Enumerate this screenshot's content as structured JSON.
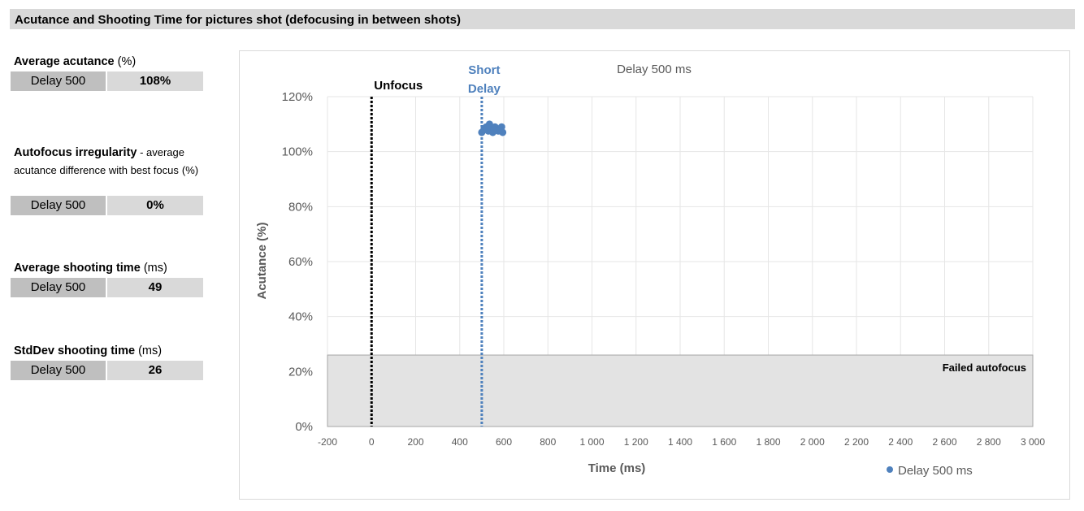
{
  "page": {
    "title": "Acutance and Shooting Time for pictures shot (defocusing in between shots)"
  },
  "metrics": [
    {
      "title": "Average acutance",
      "subtitle": "",
      "unit": "(%)",
      "row_label": "Delay 500",
      "value": "108%"
    },
    {
      "title": "Autofocus irregularity",
      "subtitle": " - average acutance difference with best focus",
      "unit": "(%)",
      "row_label": "Delay 500",
      "value": "0%"
    },
    {
      "title": "Average shooting time",
      "subtitle": "",
      "unit": "(ms)",
      "row_label": "Delay 500",
      "value": "49"
    },
    {
      "title": "StdDev shooting time",
      "subtitle": "",
      "unit": "(ms)",
      "row_label": "Delay 500",
      "value": "26"
    }
  ],
  "chart_data": {
    "type": "scatter",
    "title": "Delay 500 ms",
    "xlabel": "Time (ms)",
    "ylabel": "Acutance (%)",
    "xlim": [
      -200,
      3000
    ],
    "ylim": [
      0,
      120
    ],
    "x_ticks": [
      "-200",
      "0",
      "200",
      "400",
      "600",
      "800",
      "1 000",
      "1 200",
      "1 400",
      "1 600",
      "1 800",
      "2 000",
      "2 200",
      "2 400",
      "2 600",
      "2 800",
      "3 000"
    ],
    "y_ticks": [
      "0%",
      "20%",
      "40%",
      "60%",
      "80%",
      "100%",
      "120%"
    ],
    "grid": true,
    "legend_position": "bottom-right",
    "series": [
      {
        "name": "Delay 500 ms",
        "color": "#4f81bd",
        "points": [
          [
            500,
            107
          ],
          [
            510,
            108
          ],
          [
            520,
            109
          ],
          [
            530,
            107.5
          ],
          [
            535,
            110
          ],
          [
            545,
            108
          ],
          [
            550,
            107
          ],
          [
            560,
            109
          ],
          [
            565,
            108.5
          ],
          [
            575,
            107.5
          ],
          [
            580,
            108
          ],
          [
            590,
            109
          ],
          [
            595,
            107
          ],
          [
            525,
            108.5
          ],
          [
            555,
            108
          ],
          [
            585,
            107.8
          ]
        ]
      }
    ],
    "failed_region": {
      "label": "Failed autofocus",
      "y_max": 26,
      "color": "#e3e3e3"
    },
    "reference_lines": [
      {
        "label": "Unfocus",
        "x": 0,
        "color": "#000000"
      },
      {
        "label_line1": "Short",
        "label_line2": "Delay",
        "x": 500,
        "color": "#4f81bd"
      }
    ]
  }
}
